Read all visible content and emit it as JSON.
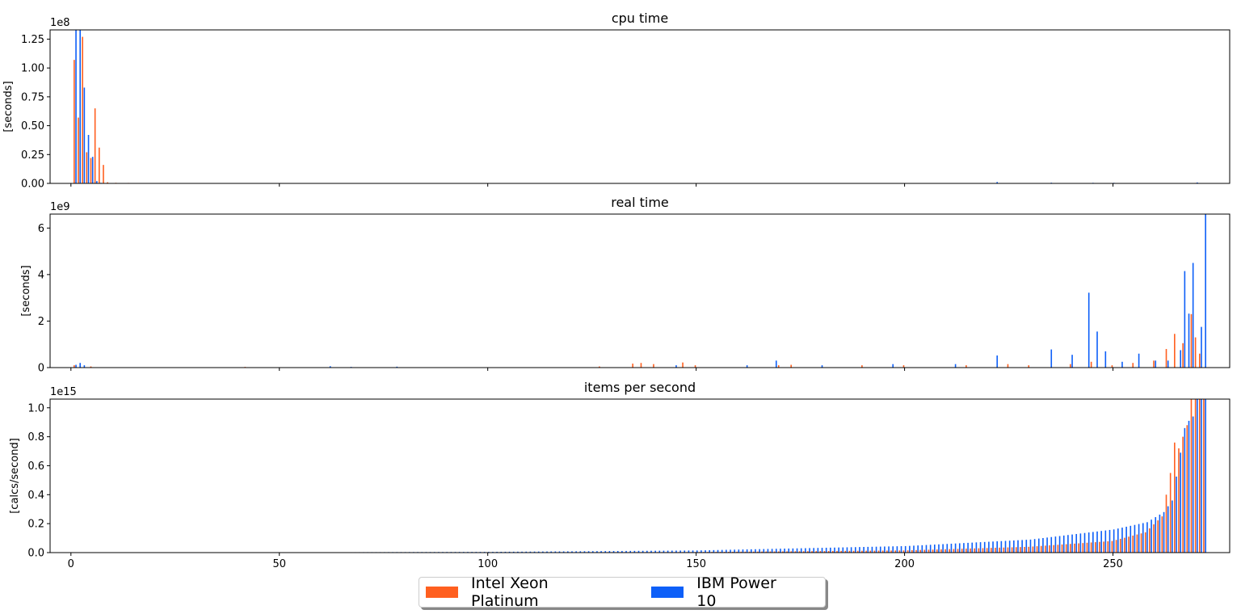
{
  "colors": {
    "intel": "#ff5f1f",
    "ibm": "#0d5ff8"
  },
  "legend": {
    "intel_label": "Intel Xeon Platinum",
    "ibm_label": "IBM Power 10"
  },
  "chart_data": [
    {
      "type": "bar",
      "title": "cpu time",
      "ylabel": "[seconds]",
      "offset_text": "1e8",
      "scale": 100000000,
      "ylim": [
        0,
        1.33
      ],
      "yticks": [
        "0.00",
        "0.25",
        "0.50",
        "0.75",
        "1.00",
        "1.25"
      ],
      "ytick_values": [
        0,
        0.25,
        0.5,
        0.75,
        1.0,
        1.25
      ],
      "xlim": [
        -5,
        278
      ],
      "xticks": [
        0,
        50,
        100,
        150,
        200,
        250
      ],
      "xtick_labels_shown": false,
      "series": [
        {
          "name": "Intel Xeon Platinum",
          "points": [
            [
              1,
              1.07
            ],
            [
              2,
              0.57
            ],
            [
              3,
              1.27
            ],
            [
              4,
              0.27
            ],
            [
              5,
              0.22
            ],
            [
              6,
              0.65
            ],
            [
              7,
              0.31
            ],
            [
              8,
              0.16
            ],
            [
              9,
              0.01
            ],
            [
              11,
              0.005
            ],
            [
              14,
              0.004
            ],
            [
              20,
              0.003
            ],
            [
              40,
              0.003
            ],
            [
              60,
              0.003
            ],
            [
              80,
              0.003
            ],
            [
              100,
              0.003
            ],
            [
              120,
              0.003
            ],
            [
              140,
              0.003
            ],
            [
              160,
              0.003
            ],
            [
              180,
              0.003
            ],
            [
              200,
              0.003
            ],
            [
              230,
              0.003
            ],
            [
              260,
              0.003
            ],
            [
              265,
              0.003
            ],
            [
              270,
              0.004
            ]
          ]
        },
        {
          "name": "IBM Power 10",
          "points": [
            [
              1,
              1.33
            ],
            [
              2,
              1.33
            ],
            [
              3,
              0.83
            ],
            [
              4,
              0.42
            ],
            [
              5,
              0.23
            ],
            [
              6,
              0.02
            ],
            [
              7,
              0.005
            ],
            [
              8,
              0.003
            ],
            [
              100,
              0.002
            ],
            [
              150,
              0.002
            ],
            [
              200,
              0.002
            ],
            [
              222,
              0.012
            ],
            [
              235,
              0.006
            ],
            [
              245,
              0.005
            ],
            [
              250,
              0.005
            ],
            [
              270,
              0.008
            ]
          ]
        }
      ]
    },
    {
      "type": "bar",
      "title": "real time",
      "ylabel": "[seconds]",
      "offset_text": "1e9",
      "scale": 1000000000,
      "ylim": [
        0,
        6.6
      ],
      "yticks": [
        "0",
        "2",
        "4",
        "6"
      ],
      "ytick_values": [
        0,
        2,
        4,
        6
      ],
      "xlim": [
        -5,
        278
      ],
      "xticks": [
        0,
        50,
        100,
        150,
        200,
        250
      ],
      "xtick_labels_shown": false,
      "series": [
        {
          "name": "Intel Xeon Platinum",
          "points": [
            [
              1,
              0.1
            ],
            [
              5,
              0.05
            ],
            [
              42,
              0.03
            ],
            [
              127,
              0.05
            ],
            [
              135,
              0.17
            ],
            [
              137,
              0.2
            ],
            [
              140,
              0.15
            ],
            [
              147,
              0.22
            ],
            [
              150,
              0.1
            ],
            [
              170,
              0.1
            ],
            [
              173,
              0.12
            ],
            [
              190,
              0.1
            ],
            [
              200,
              0.1
            ],
            [
              215,
              0.1
            ],
            [
              225,
              0.15
            ],
            [
              230,
              0.1
            ],
            [
              240,
              0.15
            ],
            [
              245,
              0.25
            ],
            [
              250,
              0.1
            ],
            [
              255,
              0.2
            ],
            [
              260,
              0.3
            ],
            [
              263,
              0.8
            ],
            [
              265,
              1.45
            ],
            [
              267,
              1.05
            ],
            [
              269,
              2.3
            ],
            [
              270,
              1.3
            ],
            [
              271,
              0.6
            ]
          ]
        },
        {
          "name": "IBM Power 10",
          "points": [
            [
              1,
              0.12
            ],
            [
              2,
              0.2
            ],
            [
              3,
              0.1
            ],
            [
              62,
              0.06
            ],
            [
              67,
              0.03
            ],
            [
              78,
              0.04
            ],
            [
              145,
              0.1
            ],
            [
              162,
              0.1
            ],
            [
              169,
              0.3
            ],
            [
              180,
              0.1
            ],
            [
              197,
              0.15
            ],
            [
              212,
              0.15
            ],
            [
              222,
              0.52
            ],
            [
              235,
              0.78
            ],
            [
              240,
              0.55
            ],
            [
              244,
              3.22
            ],
            [
              246,
              1.55
            ],
            [
              248,
              0.7
            ],
            [
              252,
              0.25
            ],
            [
              256,
              0.6
            ],
            [
              260,
              0.3
            ],
            [
              263,
              0.3
            ],
            [
              266,
              0.75
            ],
            [
              267,
              4.15
            ],
            [
              268,
              2.32
            ],
            [
              269,
              4.5
            ],
            [
              271,
              1.75
            ],
            [
              272,
              6.6
            ]
          ]
        }
      ]
    },
    {
      "type": "bar",
      "title": "items per second",
      "ylabel": "[calcs/second]",
      "offset_text": "1e15",
      "scale": 1000000000000000,
      "ylim": [
        0,
        1.06
      ],
      "yticks": [
        "0.0",
        "0.2",
        "0.4",
        "0.6",
        "0.8",
        "1.0"
      ],
      "ytick_values": [
        0,
        0.2,
        0.4,
        0.6,
        0.8,
        1.0
      ],
      "xlim": [
        -5,
        278
      ],
      "xticks": [
        0,
        50,
        100,
        150,
        200,
        250
      ],
      "xtick_labels": [
        "0",
        "50",
        "100",
        "150",
        "200",
        "250"
      ],
      "xtick_labels_shown": true,
      "curve": {
        "start_index": 54,
        "end_index": 272,
        "ibm_anchors": [
          [
            54,
            0.002
          ],
          [
            100,
            0.005
          ],
          [
            150,
            0.015
          ],
          [
            200,
            0.045
          ],
          [
            230,
            0.09
          ],
          [
            250,
            0.16
          ],
          [
            258,
            0.21
          ],
          [
            262,
            0.28
          ],
          [
            264,
            0.36
          ],
          [
            266,
            0.69
          ],
          [
            267,
            0.86
          ],
          [
            268,
            0.91
          ],
          [
            269,
            0.94
          ],
          [
            270,
            1.06
          ],
          [
            272,
            1.06
          ]
        ],
        "intel_anchors": [
          [
            54,
            0.0005
          ],
          [
            150,
            0.004
          ],
          [
            200,
            0.015
          ],
          [
            230,
            0.04
          ],
          [
            250,
            0.08
          ],
          [
            258,
            0.14
          ],
          [
            262,
            0.25
          ],
          [
            264,
            0.55
          ],
          [
            265,
            0.76
          ],
          [
            266,
            0.72
          ],
          [
            268,
            0.88
          ],
          [
            269,
            1.06
          ],
          [
            270,
            1.06
          ],
          [
            272,
            1.06
          ]
        ]
      }
    }
  ]
}
